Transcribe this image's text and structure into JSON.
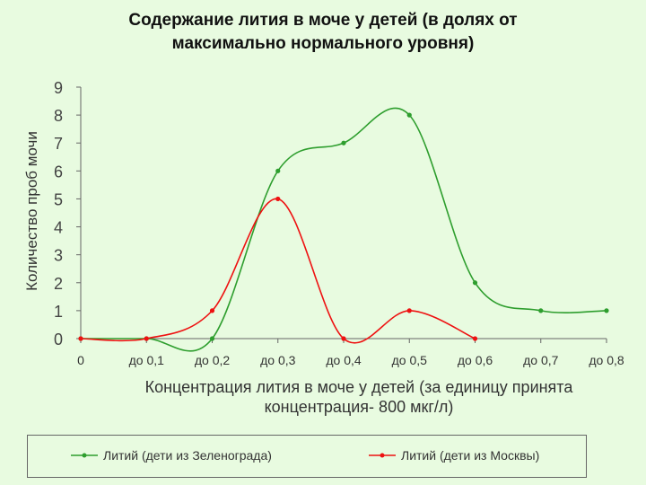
{
  "chart_data": {
    "type": "line",
    "title_line1": "Содержание лития в моче у детей (в долях от",
    "title_line2": "максимально нормального уровня)",
    "ylabel": "Количество проб мочи",
    "xlabel_line1": "Концентрация лития в моче у детей (за единицу принята",
    "xlabel_line2": "концентрация- 800 мкг/л)",
    "categories": [
      "0",
      "до 0,1",
      "до 0,2",
      "до 0,3",
      "до 0,4",
      "до 0,5",
      "до 0,6",
      "до 0,7",
      "до 0,8"
    ],
    "yticks": [
      "0",
      "1",
      "2",
      "3",
      "4",
      "5",
      "6",
      "7",
      "8",
      "9"
    ],
    "ylim": [
      0,
      9
    ],
    "series": [
      {
        "name": "Литий (дети из Зеленограда)",
        "color": "#2e9e2e",
        "values": [
          0,
          0,
          0,
          6,
          7,
          8,
          2,
          1,
          1
        ]
      },
      {
        "name": "Литий (дети из Москвы)",
        "color": "#ee1111",
        "values": [
          0,
          0,
          1,
          5,
          0,
          1,
          0,
          null,
          null
        ]
      }
    ],
    "legend_position": "bottom",
    "grid": false
  }
}
